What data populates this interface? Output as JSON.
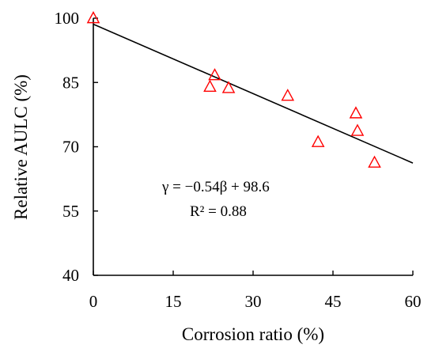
{
  "chart_data": {
    "type": "scatter",
    "xlabel": "Corrosion ratio (%)",
    "ylabel": "Relative AULC (%)",
    "xlim": [
      0,
      60
    ],
    "ylim": [
      40,
      100
    ],
    "xticks": [
      "0",
      "15",
      "30",
      "45",
      "60"
    ],
    "yticks": [
      "40",
      "55",
      "70",
      "85",
      "100"
    ],
    "grid": false,
    "marker": "open-triangle",
    "marker_color": "#ff0000",
    "points": [
      {
        "x": 0,
        "y": 100
      },
      {
        "x": 21.9,
        "y": 84.0
      },
      {
        "x": 22.8,
        "y": 86.7
      },
      {
        "x": 25.4,
        "y": 83.7
      },
      {
        "x": 36.5,
        "y": 81.9
      },
      {
        "x": 42.2,
        "y": 71.1
      },
      {
        "x": 49.3,
        "y": 77.8
      },
      {
        "x": 49.6,
        "y": 73.7
      },
      {
        "x": 52.8,
        "y": 66.3
      }
    ],
    "fit": {
      "slope": -0.54,
      "intercept": 98.6,
      "x_range": [
        0,
        60
      ],
      "color": "#000000"
    },
    "annotations": {
      "equation": "γ = −0.54β + 98.6",
      "r_squared": "R² = 0.88"
    }
  }
}
